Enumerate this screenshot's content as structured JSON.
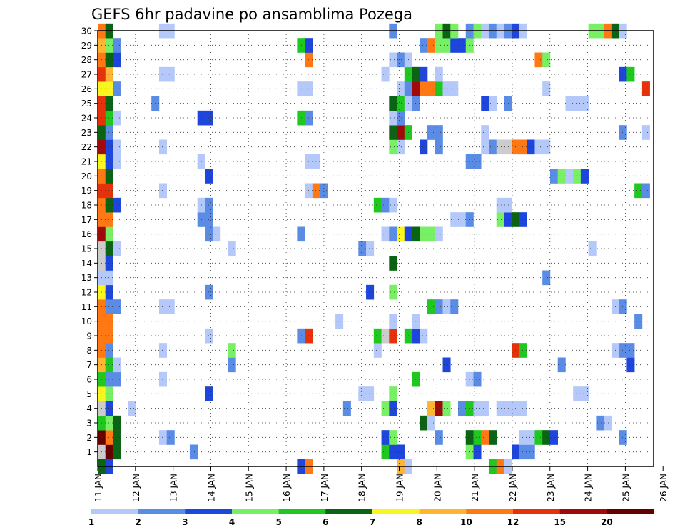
{
  "chart_data": {
    "type": "heatmap",
    "title": "GEFS 6hr padavine po ansamblima Pozega",
    "xlabel": "",
    "ylabel": "",
    "x_tick_labels": [
      "11 JAN",
      "12 JAN",
      "13 JAN",
      "14 JAN",
      "15 JAN",
      "16 JAN",
      "17 JAN",
      "18 JAN",
      "19 JAN",
      "20 JAN",
      "21 JAN",
      "22 JAN",
      "23 JAN",
      "24 JAN",
      "25 JAN",
      "26 JAN"
    ],
    "y_tick_labels": [
      "1",
      "2",
      "3",
      "4",
      "5",
      "6",
      "7",
      "8",
      "9",
      "10",
      "11",
      "12",
      "13",
      "14",
      "15",
      "16",
      "17",
      "18",
      "19",
      "20",
      "21",
      "22",
      "23",
      "24",
      "25",
      "26",
      "27",
      "28",
      "29",
      "30"
    ],
    "x_range_days": [
      0,
      15
    ],
    "y_range_members": [
      0,
      30
    ],
    "time_step_hours": 6,
    "grid": "dotted",
    "colorbar": {
      "labels": [
        "1",
        "2",
        "3",
        "4",
        "5",
        "6",
        "7",
        "8",
        "10",
        "12",
        "15",
        "20"
      ],
      "colors": [
        "#b4c8fa",
        "#5a8ce6",
        "#1e46dc",
        "#78f064",
        "#1ec81e",
        "#0a6414",
        "#faf51e",
        "#ffb432",
        "#ff7814",
        "#e6320a",
        "#a00a0a",
        "#640000"
      ]
    },
    "cells": [
      [
        0,
        1,
        14
      ],
      [
        1,
        1,
        12
      ],
      [
        2,
        1,
        6
      ],
      [
        12,
        1,
        2
      ],
      [
        37,
        1,
        5
      ],
      [
        38,
        1,
        3
      ],
      [
        39,
        1,
        3
      ],
      [
        48,
        1,
        4
      ],
      [
        49,
        1,
        3
      ],
      [
        54,
        1,
        3
      ],
      [
        55,
        1,
        2
      ],
      [
        56,
        1,
        2
      ],
      [
        0,
        2,
        12
      ],
      [
        1,
        2,
        9
      ],
      [
        2,
        2,
        6
      ],
      [
        8,
        2,
        1
      ],
      [
        9,
        2,
        2
      ],
      [
        37,
        2,
        3
      ],
      [
        38,
        2,
        4
      ],
      [
        44,
        2,
        2
      ],
      [
        48,
        2,
        6
      ],
      [
        49,
        2,
        5
      ],
      [
        50,
        2,
        9
      ],
      [
        51,
        2,
        6
      ],
      [
        55,
        2,
        1
      ],
      [
        56,
        2,
        1
      ],
      [
        57,
        2,
        5
      ],
      [
        58,
        2,
        6
      ],
      [
        59,
        2,
        3
      ],
      [
        68,
        2,
        2
      ],
      [
        0,
        3,
        5
      ],
      [
        1,
        3,
        4
      ],
      [
        2,
        3,
        6
      ],
      [
        42,
        3,
        6
      ],
      [
        43,
        3,
        1
      ],
      [
        65,
        3,
        2
      ],
      [
        66,
        3,
        1
      ],
      [
        0,
        4,
        13
      ],
      [
        1,
        4,
        3
      ],
      [
        4,
        4,
        1
      ],
      [
        32,
        4,
        2
      ],
      [
        37,
        4,
        4
      ],
      [
        38,
        4,
        3
      ],
      [
        43,
        4,
        8
      ],
      [
        44,
        4,
        11
      ],
      [
        45,
        4,
        4
      ],
      [
        47,
        4,
        2
      ],
      [
        48,
        4,
        5
      ],
      [
        49,
        4,
        1
      ],
      [
        50,
        4,
        1
      ],
      [
        52,
        4,
        1
      ],
      [
        53,
        4,
        1
      ],
      [
        54,
        4,
        1
      ],
      [
        55,
        4,
        1
      ],
      [
        0,
        5,
        7
      ],
      [
        1,
        5,
        4
      ],
      [
        14,
        5,
        3
      ],
      [
        34,
        5,
        1
      ],
      [
        35,
        5,
        1
      ],
      [
        38,
        5,
        4
      ],
      [
        62,
        5,
        1
      ],
      [
        63,
        5,
        1
      ],
      [
        0,
        6,
        5
      ],
      [
        1,
        6,
        2
      ],
      [
        2,
        6,
        2
      ],
      [
        8,
        6,
        1
      ],
      [
        41,
        6,
        5
      ],
      [
        48,
        6,
        1
      ],
      [
        49,
        6,
        2
      ],
      [
        0,
        7,
        8
      ],
      [
        1,
        7,
        5
      ],
      [
        2,
        7,
        1
      ],
      [
        17,
        7,
        2
      ],
      [
        45,
        7,
        3
      ],
      [
        60,
        7,
        2
      ],
      [
        69,
        7,
        3
      ],
      [
        0,
        8,
        9
      ],
      [
        1,
        8,
        2
      ],
      [
        8,
        8,
        1
      ],
      [
        17,
        8,
        4
      ],
      [
        36,
        8,
        1
      ],
      [
        54,
        8,
        10
      ],
      [
        55,
        8,
        5
      ],
      [
        67,
        8,
        1
      ],
      [
        68,
        8,
        2
      ],
      [
        69,
        8,
        2
      ],
      [
        0,
        9,
        9
      ],
      [
        1,
        9,
        9
      ],
      [
        14,
        9,
        1
      ],
      [
        26,
        9,
        2
      ],
      [
        27,
        9,
        10
      ],
      [
        36,
        9,
        5
      ],
      [
        37,
        9,
        13
      ],
      [
        38,
        9,
        10
      ],
      [
        40,
        9,
        5
      ],
      [
        41,
        9,
        3
      ],
      [
        42,
        9,
        1
      ],
      [
        0,
        10,
        9
      ],
      [
        1,
        10,
        9
      ],
      [
        31,
        10,
        1
      ],
      [
        38,
        10,
        1
      ],
      [
        41,
        10,
        1
      ],
      [
        70,
        10,
        2
      ],
      [
        0,
        11,
        9
      ],
      [
        1,
        11,
        2
      ],
      [
        2,
        11,
        2
      ],
      [
        8,
        11,
        1
      ],
      [
        9,
        11,
        1
      ],
      [
        43,
        11,
        5
      ],
      [
        44,
        11,
        2
      ],
      [
        45,
        11,
        1
      ],
      [
        46,
        11,
        2
      ],
      [
        67,
        11,
        1
      ],
      [
        68,
        11,
        2
      ],
      [
        0,
        12,
        7
      ],
      [
        1,
        12,
        3
      ],
      [
        14,
        12,
        2
      ],
      [
        35,
        12,
        3
      ],
      [
        38,
        12,
        4
      ],
      [
        0,
        13,
        1
      ],
      [
        1,
        13,
        1
      ],
      [
        58,
        13,
        2
      ],
      [
        0,
        14,
        13
      ],
      [
        1,
        14,
        3
      ],
      [
        38,
        14,
        6
      ],
      [
        0,
        15,
        13
      ],
      [
        1,
        15,
        6
      ],
      [
        2,
        15,
        1
      ],
      [
        17,
        15,
        1
      ],
      [
        34,
        15,
        2
      ],
      [
        35,
        15,
        1
      ],
      [
        64,
        15,
        1
      ],
      [
        0,
        16,
        11
      ],
      [
        1,
        16,
        4
      ],
      [
        14,
        16,
        2
      ],
      [
        15,
        16,
        1
      ],
      [
        26,
        16,
        2
      ],
      [
        37,
        16,
        1
      ],
      [
        38,
        16,
        2
      ],
      [
        39,
        16,
        7
      ],
      [
        40,
        16,
        3
      ],
      [
        41,
        16,
        6
      ],
      [
        42,
        16,
        4
      ],
      [
        43,
        16,
        4
      ],
      [
        44,
        16,
        1
      ],
      [
        0,
        17,
        9
      ],
      [
        1,
        17,
        9
      ],
      [
        13,
        17,
        2
      ],
      [
        14,
        17,
        2
      ],
      [
        46,
        17,
        1
      ],
      [
        47,
        17,
        1
      ],
      [
        48,
        17,
        2
      ],
      [
        52,
        17,
        4
      ],
      [
        53,
        17,
        3
      ],
      [
        54,
        17,
        6
      ],
      [
        55,
        17,
        3
      ],
      [
        0,
        18,
        9
      ],
      [
        1,
        18,
        6
      ],
      [
        2,
        18,
        3
      ],
      [
        13,
        18,
        1
      ],
      [
        14,
        18,
        2
      ],
      [
        36,
        18,
        5
      ],
      [
        37,
        18,
        2
      ],
      [
        38,
        18,
        1
      ],
      [
        52,
        18,
        1
      ],
      [
        53,
        18,
        1
      ],
      [
        0,
        19,
        10
      ],
      [
        1,
        19,
        10
      ],
      [
        8,
        19,
        1
      ],
      [
        27,
        19,
        1
      ],
      [
        28,
        19,
        9
      ],
      [
        29,
        19,
        2
      ],
      [
        70,
        19,
        5
      ],
      [
        71,
        19,
        2
      ],
      [
        0,
        20,
        9
      ],
      [
        1,
        20,
        6
      ],
      [
        14,
        20,
        3
      ],
      [
        59,
        20,
        2
      ],
      [
        60,
        20,
        4
      ],
      [
        61,
        20,
        1
      ],
      [
        62,
        20,
        4
      ],
      [
        63,
        20,
        3
      ],
      [
        0,
        21,
        7
      ],
      [
        1,
        21,
        3
      ],
      [
        2,
        21,
        1
      ],
      [
        13,
        21,
        1
      ],
      [
        27,
        21,
        1
      ],
      [
        28,
        21,
        1
      ],
      [
        48,
        21,
        2
      ],
      [
        49,
        21,
        2
      ],
      [
        0,
        22,
        11
      ],
      [
        1,
        22,
        3
      ],
      [
        2,
        22,
        1
      ],
      [
        8,
        22,
        1
      ],
      [
        38,
        22,
        4
      ],
      [
        39,
        22,
        1
      ],
      [
        42,
        22,
        3
      ],
      [
        44,
        22,
        2
      ],
      [
        50,
        22,
        1
      ],
      [
        51,
        22,
        2
      ],
      [
        52,
        22,
        13
      ],
      [
        53,
        22,
        13
      ],
      [
        54,
        22,
        9
      ],
      [
        55,
        22,
        9
      ],
      [
        56,
        22,
        3
      ],
      [
        57,
        22,
        1
      ],
      [
        58,
        22,
        1
      ],
      [
        0,
        23,
        6
      ],
      [
        1,
        23,
        2
      ],
      [
        38,
        23,
        6
      ],
      [
        39,
        23,
        11
      ],
      [
        40,
        23,
        5
      ],
      [
        43,
        23,
        2
      ],
      [
        44,
        23,
        2
      ],
      [
        50,
        23,
        1
      ],
      [
        68,
        23,
        2
      ],
      [
        71,
        23,
        1
      ],
      [
        0,
        24,
        10
      ],
      [
        1,
        24,
        5
      ],
      [
        2,
        24,
        1
      ],
      [
        13,
        24,
        3
      ],
      [
        14,
        24,
        3
      ],
      [
        26,
        24,
        5
      ],
      [
        27,
        24,
        2
      ],
      [
        38,
        24,
        1
      ],
      [
        39,
        24,
        2
      ],
      [
        0,
        25,
        10
      ],
      [
        1,
        25,
        6
      ],
      [
        7,
        25,
        2
      ],
      [
        38,
        25,
        6
      ],
      [
        39,
        25,
        5
      ],
      [
        40,
        25,
        1
      ],
      [
        41,
        25,
        2
      ],
      [
        50,
        25,
        3
      ],
      [
        51,
        25,
        1
      ],
      [
        53,
        25,
        2
      ],
      [
        61,
        25,
        1
      ],
      [
        62,
        25,
        1
      ],
      [
        63,
        25,
        1
      ],
      [
        0,
        26,
        7
      ],
      [
        1,
        26,
        7
      ],
      [
        2,
        26,
        2
      ],
      [
        26,
        26,
        1
      ],
      [
        27,
        26,
        1
      ],
      [
        39,
        26,
        1
      ],
      [
        40,
        26,
        2
      ],
      [
        41,
        26,
        11
      ],
      [
        42,
        26,
        9
      ],
      [
        43,
        26,
        9
      ],
      [
        44,
        26,
        5
      ],
      [
        45,
        26,
        1
      ],
      [
        46,
        26,
        1
      ],
      [
        58,
        26,
        1
      ],
      [
        71,
        26,
        10
      ],
      [
        0,
        27,
        10
      ],
      [
        1,
        27,
        8
      ],
      [
        8,
        27,
        1
      ],
      [
        9,
        27,
        1
      ],
      [
        37,
        27,
        1
      ],
      [
        40,
        27,
        5
      ],
      [
        41,
        27,
        6
      ],
      [
        42,
        27,
        3
      ],
      [
        44,
        27,
        1
      ],
      [
        68,
        27,
        3
      ],
      [
        69,
        27,
        5
      ],
      [
        0,
        28,
        9
      ],
      [
        1,
        28,
        6
      ],
      [
        2,
        28,
        3
      ],
      [
        27,
        28,
        9
      ],
      [
        38,
        28,
        1
      ],
      [
        39,
        28,
        2
      ],
      [
        40,
        28,
        1
      ],
      [
        57,
        28,
        9
      ],
      [
        58,
        28,
        4
      ],
      [
        0,
        29,
        8
      ],
      [
        1,
        29,
        4
      ],
      [
        2,
        29,
        2
      ],
      [
        26,
        29,
        5
      ],
      [
        27,
        29,
        3
      ],
      [
        42,
        29,
        2
      ],
      [
        43,
        29,
        9
      ],
      [
        44,
        29,
        4
      ],
      [
        45,
        29,
        4
      ],
      [
        46,
        29,
        3
      ],
      [
        47,
        29,
        3
      ],
      [
        48,
        29,
        4
      ],
      [
        0,
        30,
        9
      ],
      [
        1,
        30,
        6
      ],
      [
        8,
        30,
        1
      ],
      [
        9,
        30,
        1
      ],
      [
        38,
        30,
        2
      ],
      [
        44,
        30,
        4
      ],
      [
        45,
        30,
        6
      ],
      [
        46,
        30,
        4
      ],
      [
        48,
        30,
        2
      ],
      [
        49,
        30,
        4
      ],
      [
        50,
        30,
        1
      ],
      [
        51,
        30,
        2
      ],
      [
        52,
        30,
        1
      ],
      [
        53,
        30,
        2
      ],
      [
        54,
        30,
        3
      ],
      [
        55,
        30,
        1
      ],
      [
        64,
        30,
        4
      ],
      [
        65,
        30,
        4
      ],
      [
        66,
        30,
        9
      ],
      [
        67,
        30,
        6
      ],
      [
        68,
        30,
        1
      ],
      [
        0,
        0,
        6
      ],
      [
        1,
        0,
        3
      ],
      [
        26,
        0,
        3
      ],
      [
        27,
        0,
        9
      ],
      [
        39,
        0,
        8
      ],
      [
        40,
        0,
        1
      ],
      [
        51,
        0,
        5
      ],
      [
        52,
        0,
        9
      ],
      [
        53,
        0,
        1
      ]
    ]
  }
}
